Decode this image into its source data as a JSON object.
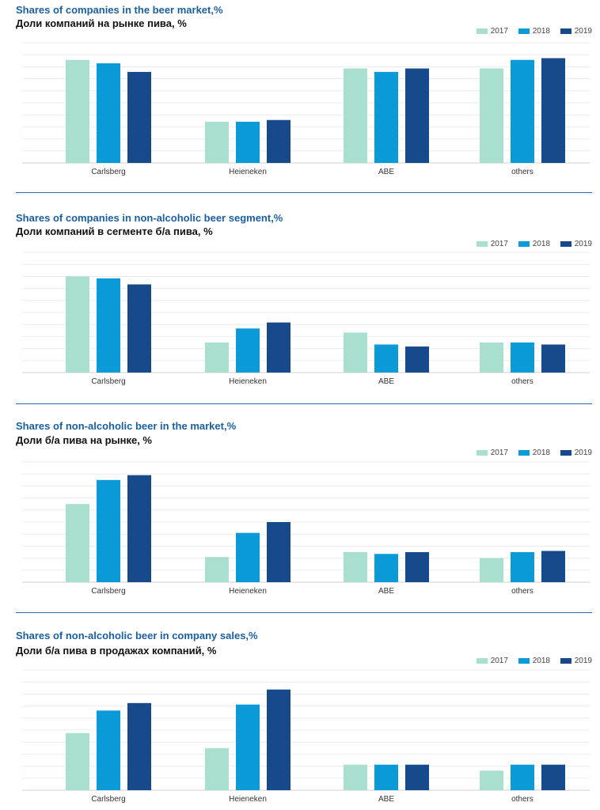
{
  "colors": {
    "c2017": "#a9dfcf",
    "c2018": "#0a9ad7",
    "c2019": "#174a8a"
  },
  "chart_data": [
    {
      "type": "bar",
      "title": "Shares of companies in the beer market,%",
      "subtitle": "Доли компаний на рынке пива, %",
      "categories": [
        "Carlsberg",
        "Heieneken",
        "ABE",
        "others"
      ],
      "series": [
        {
          "name": "2017",
          "values": [
            30,
            12,
            27.5,
            27.5
          ]
        },
        {
          "name": "2018",
          "values": [
            29,
            12,
            26.5,
            30
          ]
        },
        {
          "name": "2019",
          "values": [
            26.5,
            12.5,
            27.5,
            30.5
          ]
        }
      ],
      "ylim": [
        0,
        35
      ],
      "legend": "top-right",
      "grid": true
    },
    {
      "type": "bar",
      "title": "Shares of companies in non-alcoholic beer segment,%",
      "subtitle": "Доли компаний в сегменте б/а пива, %",
      "categories": [
        "Carlsberg",
        "Heieneken",
        "ABE",
        "others"
      ],
      "series": [
        {
          "name": "2017",
          "values": [
            48,
            15,
            20,
            15
          ]
        },
        {
          "name": "2018",
          "values": [
            47,
            22,
            14,
            15
          ]
        },
        {
          "name": "2019",
          "values": [
            44,
            25,
            13,
            14
          ]
        }
      ],
      "ylim": [
        0,
        60
      ],
      "legend": "top-right",
      "grid": true
    },
    {
      "type": "bar",
      "title": "Shares of non-alcoholic beer  in the market,%",
      "subtitle": "Доли б/а пива на рынке, %",
      "categories": [
        "Carlsberg",
        "Heieneken",
        "ABE",
        "others"
      ],
      "series": [
        {
          "name": "2017",
          "values": [
            1.3,
            0.42,
            0.5,
            0.4
          ]
        },
        {
          "name": "2018",
          "values": [
            1.7,
            0.82,
            0.47,
            0.5
          ]
        },
        {
          "name": "2019",
          "values": [
            1.78,
            1.0,
            0.5,
            0.52
          ]
        }
      ],
      "ylim": [
        0,
        2.0
      ],
      "legend": "top-right",
      "grid": true
    },
    {
      "type": "bar",
      "title": "Shares of non-alcoholic beer in company sales,%",
      "subtitle": "Доли б/а пива в продажах компаний, %",
      "categories": [
        "Carlsberg",
        "Heieneken",
        "ABE",
        "others"
      ],
      "series": [
        {
          "name": "2017",
          "values": [
            3.8,
            2.8,
            1.7,
            1.3
          ]
        },
        {
          "name": "2018",
          "values": [
            5.3,
            5.7,
            1.7,
            1.7
          ]
        },
        {
          "name": "2019",
          "values": [
            5.8,
            6.7,
            1.7,
            1.7
          ]
        }
      ],
      "ylim": [
        0,
        8
      ],
      "legend": "top-right",
      "grid": true
    }
  ]
}
